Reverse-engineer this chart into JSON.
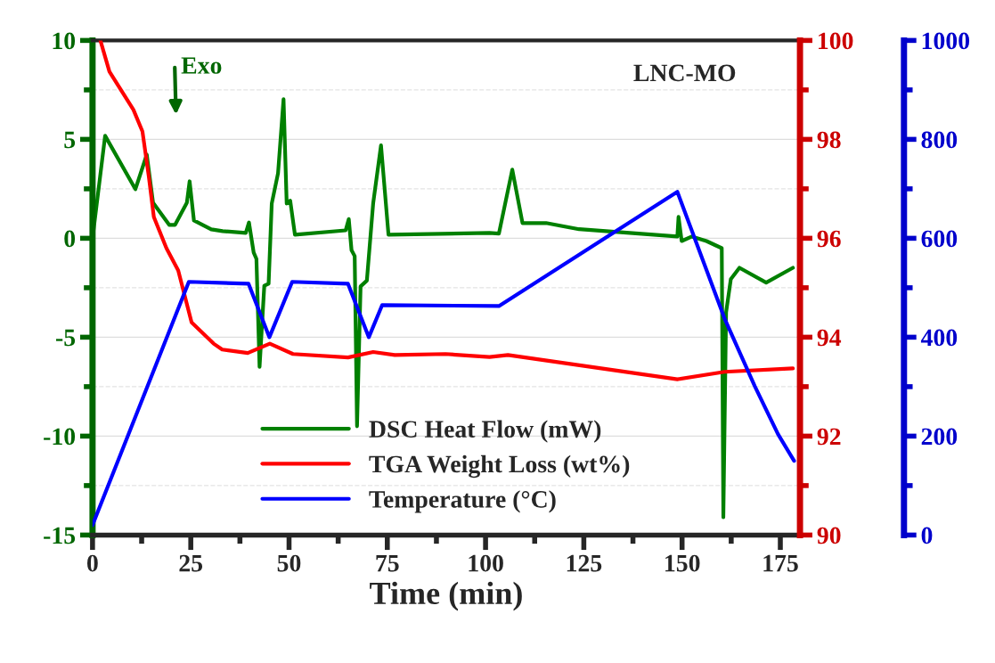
{
  "chart_data": {
    "type": "line",
    "xlabel": "Time (min)",
    "annotations": [
      "LNC-MO",
      "Exo"
    ],
    "xlim": [
      0,
      180
    ],
    "xticks": [
      0,
      {
        "value": 12.5,
        "label": null
      },
      25,
      {
        "value": 37.5,
        "label": null
      },
      50,
      {
        "value": 62.5,
        "label": null
      },
      75,
      {
        "value": 87.5,
        "label": null
      },
      100,
      {
        "value": 112.5,
        "label": null
      },
      125,
      {
        "value": 137.5,
        "label": null
      },
      150,
      {
        "value": 162.5,
        "label": null
      },
      175
    ],
    "ylim": [
      -15,
      10
    ],
    "yticks": [
      -15,
      {
        "value": -12.5,
        "label": null
      },
      -10,
      {
        "value": -7.5,
        "label": null
      },
      -5,
      {
        "value": -2.5,
        "label": null
      },
      0,
      {
        "value": 2.5,
        "label": null
      },
      5,
      {
        "value": 7.5,
        "label": null
      },
      10
    ],
    "y2lim": [
      90,
      100
    ],
    "y2ticks": [
      90,
      {
        "value": 91,
        "label": null
      },
      92,
      {
        "value": 93,
        "label": null
      },
      94,
      {
        "value": 95,
        "label": null
      },
      96,
      {
        "value": 97,
        "label": null
      },
      98,
      {
        "value": 99,
        "label": null
      },
      100
    ],
    "y3lim": [
      0,
      1000
    ],
    "y3ticks": [
      0,
      {
        "value": 100,
        "label": null
      },
      200,
      {
        "value": 300,
        "label": null
      },
      400,
      {
        "value": 500,
        "label": null
      },
      600,
      {
        "value": 700,
        "label": null
      },
      800,
      {
        "value": 900,
        "label": null
      },
      1000
    ],
    "grid": "y",
    "legend": "bottom",
    "line_style": "solid",
    "marker": "none",
    "series": [
      {
        "name": "DSC Heat Flow (mW)",
        "color": "#008000",
        "x": [
          0,
          3.2,
          10.9,
          13.8,
          15.4,
          19.5,
          21,
          24,
          24.7,
          25.8,
          30.2,
          33.1,
          39,
          39.8,
          41,
          41.7,
          42.5,
          43.7,
          44.8,
          45.6,
          47.2,
          48.6,
          49.4,
          50.3,
          51.5,
          64.4,
          65.2,
          65.9,
          66.7,
          67.3,
          68.2,
          69.8,
          71.4,
          73.4,
          75.3,
          101,
          103.4,
          106.8,
          109.4,
          115.4,
          123.8,
          148.8,
          149.1,
          149.9,
          152.5,
          156.2,
          160.1,
          160.5,
          161.2,
          162.4,
          164.6,
          171.4,
          178.2
        ],
        "values": [
          0,
          5.18,
          2.48,
          4.23,
          1.8,
          0.68,
          0.68,
          1.8,
          2.88,
          0.9,
          0.45,
          0.36,
          0.27,
          0.8,
          -0.72,
          -1.04,
          -6.5,
          -2.4,
          -2.3,
          1.76,
          3.29,
          7.03,
          1.76,
          1.9,
          0.18,
          0.4,
          0.97,
          -0.6,
          -0.9,
          -9.5,
          -2.43,
          -2.14,
          1.76,
          4.7,
          0.18,
          0.27,
          0.24,
          3.47,
          0.77,
          0.77,
          0.46,
          0.09,
          1.08,
          -0.14,
          0.09,
          -0.14,
          -0.5,
          -14.1,
          -3.74,
          -2.07,
          -1.49,
          -2.24,
          -1.49
        ]
      },
      {
        "name": "TGA Weight Loss (wt%)",
        "color": "#ff0000",
        "axis": "y2",
        "x": [
          2,
          4.3,
          10.4,
          12.7,
          14.3,
          15.6,
          18.8,
          21.8,
          25.2,
          30.8,
          33,
          39.5,
          45.1,
          51,
          65,
          71.4,
          76.9,
          89.8,
          101,
          105.7,
          148.8,
          160.8,
          178.2
        ],
        "values": [
          100,
          99.37,
          98.6,
          98.16,
          97.26,
          96.43,
          95.8,
          95.35,
          94.3,
          93.87,
          93.75,
          93.68,
          93.87,
          93.66,
          93.59,
          93.7,
          93.64,
          93.66,
          93.6,
          93.64,
          93.15,
          93.3,
          93.37
        ]
      },
      {
        "name": "Temperature (°C)",
        "color": "#0000ff",
        "axis": "y3",
        "x": [
          0,
          24.5,
          39.7,
          45,
          50.8,
          65,
          70.3,
          73.7,
          103.4,
          148.8,
          160.8,
          168.5,
          174.4,
          178.5
        ],
        "values": [
          20,
          512,
          508,
          400,
          512,
          508,
          400,
          465,
          463,
          694,
          438,
          301,
          204,
          150
        ]
      }
    ]
  }
}
